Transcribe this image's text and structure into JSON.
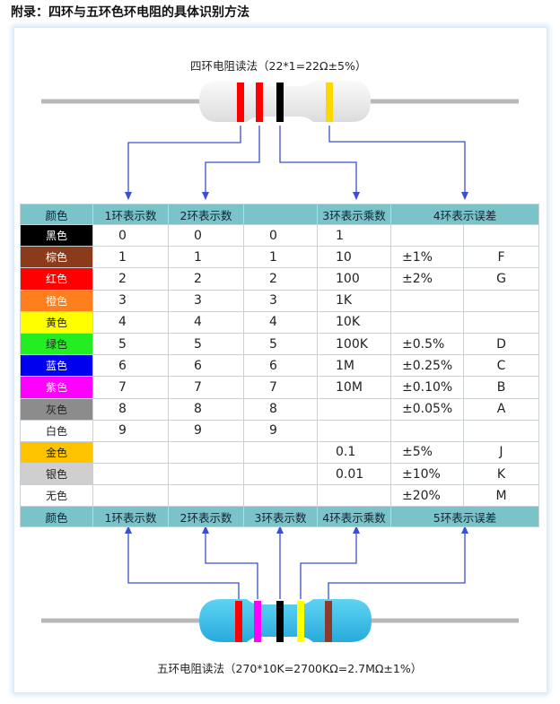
{
  "title": "附录：四环与五环色环电阻的具体识别方法",
  "four_band": {
    "caption": "四环电阻读法（22*1=22Ω±5%）",
    "bands": [
      "#ff0000",
      "#ff0000",
      "#000000",
      "#ffd700"
    ]
  },
  "five_band": {
    "caption": "五环电阻读法（270*10K=2700KΩ=2.7MΩ±1%）",
    "bands": [
      "#ff0000",
      "#ff00ff",
      "#000000",
      "#ffff00",
      "#8b3a2b"
    ]
  },
  "table": {
    "header_top": [
      "颜色",
      "1环表示数",
      "2环表示数",
      "",
      "3环表示乘数",
      "4环表示误差"
    ],
    "header_bottom": [
      "颜色",
      "1环表示数",
      "2环表示数",
      "3环表示数",
      "4环表示乘数",
      "5环表示误差"
    ],
    "rows": [
      {
        "name": "黑色",
        "bg": "#000000",
        "fg": "#ffffff",
        "d1": "0",
        "d2": "0",
        "d3": "0",
        "mult": "1",
        "tol": "",
        "code": "",
        "green": false
      },
      {
        "name": "棕色",
        "bg": "#8b3a1a",
        "fg": "#ffffff",
        "d1": "1",
        "d2": "1",
        "d3": "1",
        "mult": "10",
        "tol": "±1%",
        "code": "F",
        "green": true
      },
      {
        "name": "红色",
        "bg": "#ff0000",
        "fg": "#ffffff",
        "d1": "2",
        "d2": "2",
        "d3": "2",
        "mult": "100",
        "tol": "±2%",
        "code": "G",
        "green": false
      },
      {
        "name": "橙色",
        "bg": "#ff7f1e",
        "fg": "#ffffff",
        "d1": "3",
        "d2": "3",
        "d3": "3",
        "mult": "1K",
        "tol": "",
        "code": "",
        "green": false
      },
      {
        "name": "黄色",
        "bg": "#ffff00",
        "fg": "#222222",
        "d1": "4",
        "d2": "4",
        "d3": "4",
        "mult": "10K",
        "tol": "",
        "code": "",
        "green": false
      },
      {
        "name": "绿色",
        "bg": "#22ee22",
        "fg": "#222222",
        "d1": "5",
        "d2": "5",
        "d3": "5",
        "mult": "100K",
        "tol": "±0.5%",
        "code": "D",
        "green": true
      },
      {
        "name": "蓝色",
        "bg": "#0000ee",
        "fg": "#ffffff",
        "d1": "6",
        "d2": "6",
        "d3": "6",
        "mult": "1M",
        "tol": "±0.25%",
        "code": "C",
        "green": false
      },
      {
        "name": "紫色",
        "bg": "#ff00ff",
        "fg": "#ffffff",
        "d1": "7",
        "d2": "7",
        "d3": "7",
        "mult": "10M",
        "tol": "±0.10%",
        "code": "B",
        "green": true
      },
      {
        "name": "灰色",
        "bg": "#8c8c8c",
        "fg": "#222222",
        "d1": "8",
        "d2": "8",
        "d3": "8",
        "mult": "",
        "tol": "±0.05%",
        "code": "A",
        "green": false
      },
      {
        "name": "白色",
        "bg": "#ffffff",
        "fg": "#222222",
        "d1": "9",
        "d2": "9",
        "d3": "9",
        "mult": "",
        "tol": "",
        "code": "",
        "green": false
      },
      {
        "name": "金色",
        "bg": "#ffc400",
        "fg": "#222222",
        "d1": "",
        "d2": "",
        "d3": "",
        "mult": "0.1",
        "tol": "±5%",
        "code": "J",
        "green": true
      },
      {
        "name": "银色",
        "bg": "#cfcfcf",
        "fg": "#222222",
        "d1": "",
        "d2": "",
        "d3": "",
        "mult": "0.01",
        "tol": "±10%",
        "code": "K",
        "green": false
      },
      {
        "name": "无色",
        "bg": "#ffffff",
        "fg": "#222222",
        "d1": "",
        "d2": "",
        "d3": "",
        "mult": "",
        "tol": "±20%",
        "code": "M",
        "green": false
      }
    ]
  },
  "colors": {
    "header_bg": "#7ac3c8",
    "arrow": "#3b4fd0",
    "lead": "#b8b8b8",
    "body_four": "#efefef",
    "body_five": "#3ec3ea",
    "green_text": "#3fa535"
  }
}
